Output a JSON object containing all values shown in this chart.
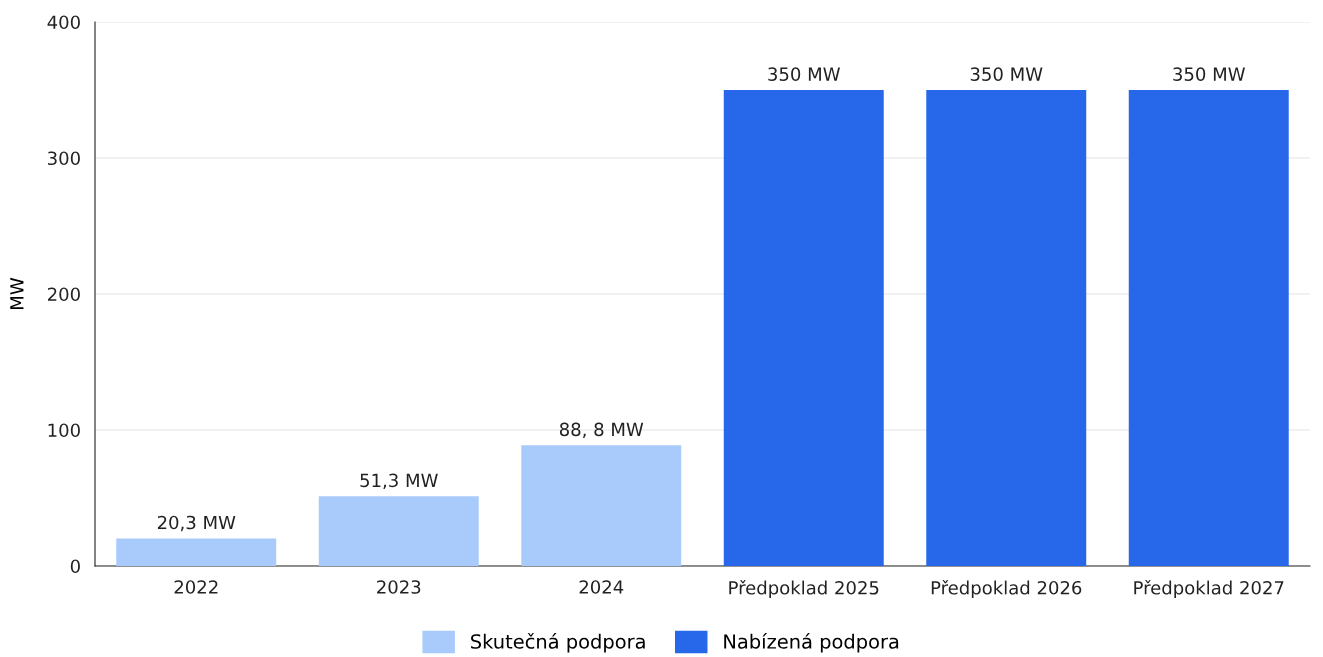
{
  "chart_data": {
    "type": "bar",
    "ylabel": "MW",
    "categories": [
      "2022",
      "2023",
      "2024",
      "Předpoklad 2025",
      "Předpoklad 2026",
      "Předpoklad 2027"
    ],
    "series": [
      {
        "name": "Skutečná podpora",
        "color": "#a8cbfc",
        "values": [
          20.3,
          51.3,
          88.8,
          null,
          null,
          null
        ],
        "value_labels": [
          "20,3 MW",
          "51,3 MW",
          null,
          null,
          null,
          null
        ]
      },
      {
        "name": "Nabízená podpora",
        "color": "#2767ea",
        "values": [
          null,
          null,
          null,
          350,
          350,
          350
        ],
        "value_labels": [
          null,
          null,
          null,
          "350 MW",
          "350 MW",
          "350 MW"
        ]
      }
    ],
    "ylim": [
      0,
      400
    ],
    "yticks": [
      0,
      100,
      200,
      300,
      400
    ],
    "grid": "y",
    "legend": "bottom",
    "annotations": [
      {
        "text": "88, 8 MW",
        "x": "2024",
        "y": 88.8
      }
    ]
  }
}
